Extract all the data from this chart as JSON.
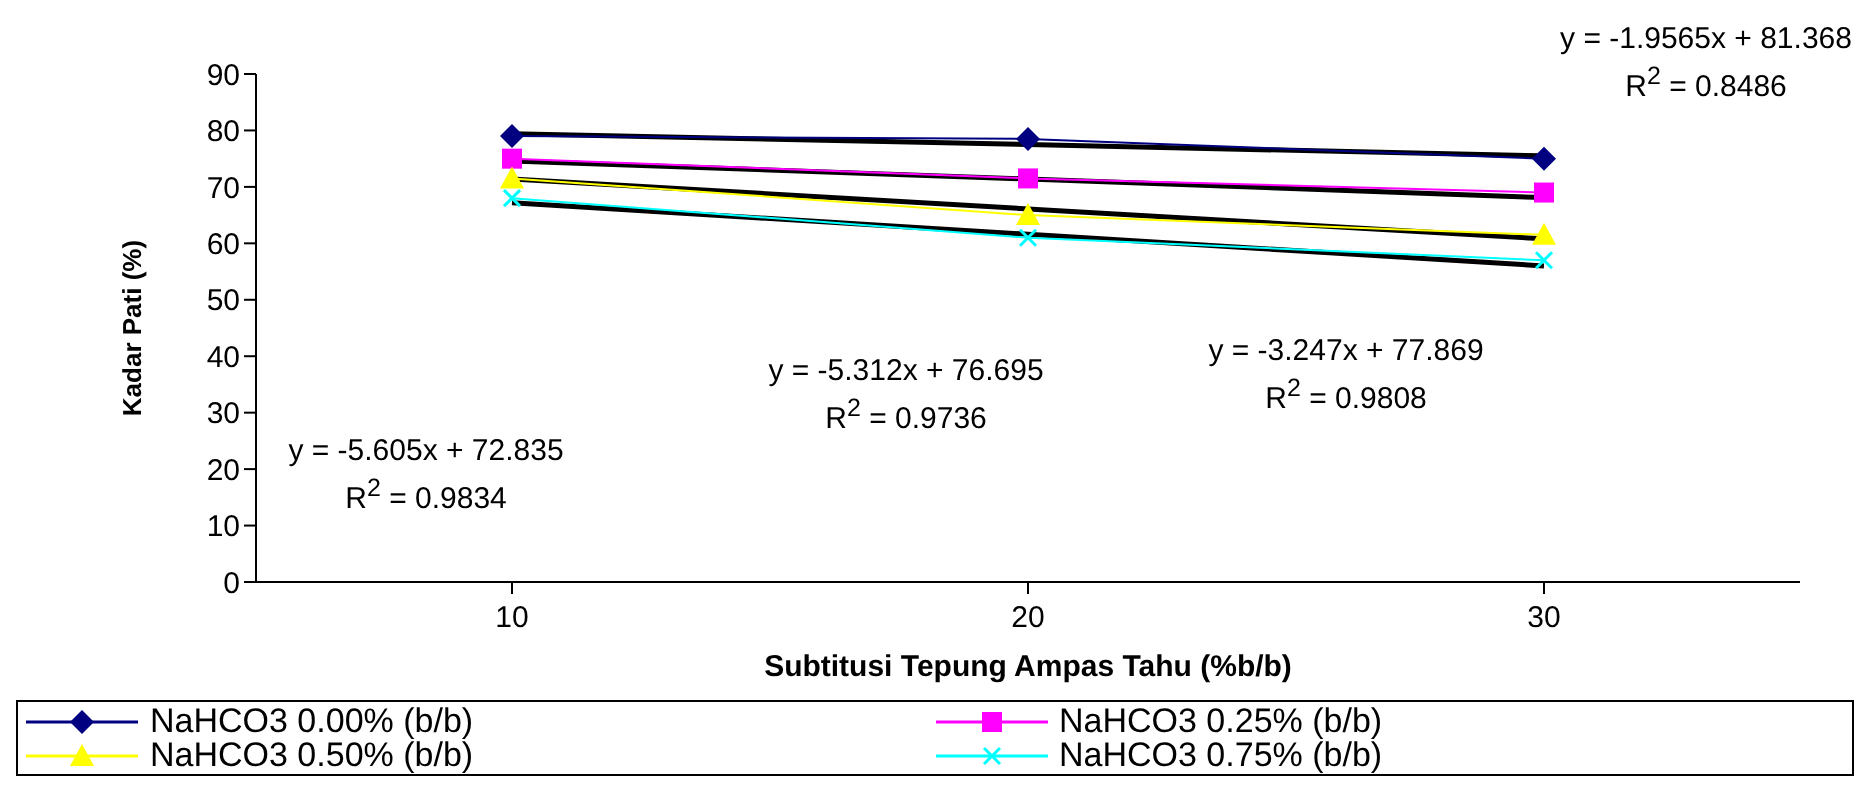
{
  "chart_data": {
    "type": "line",
    "xlabel": "Subtitusi Tepung Ampas Tahu (%b/b)",
    "ylabel": "Kadar Pati (%)",
    "categories": [
      "10",
      "20",
      "30"
    ],
    "ylim": [
      0,
      90
    ],
    "yticks": [
      0,
      10,
      20,
      30,
      40,
      50,
      60,
      70,
      80,
      90
    ],
    "grid": false,
    "legend": "bottom",
    "line_style": "solid",
    "series": [
      {
        "name": "NaHCO3 0.00% (b/b)",
        "color": "#000080",
        "marker": "diamond",
        "values": [
          79,
          78.5,
          75
        ]
      },
      {
        "name": "NaHCO3 0.25% (b/b)",
        "color": "#ff00ff",
        "marker": "square",
        "values": [
          75,
          71.5,
          69
        ]
      },
      {
        "name": "NaHCO3 0.50% (b/b)",
        "color": "#ffff00",
        "marker": "triangle",
        "values": [
          71.5,
          65,
          61.5
        ]
      },
      {
        "name": "NaHCO3 0.75% (b/b)",
        "color": "#00ffff",
        "marker": "cross",
        "values": [
          68,
          61,
          57
        ]
      },
      {
        "type": "line",
        "color": "#000000",
        "marker": "none",
        "x": [
          "10",
          "20",
          "30"
        ],
        "values": [
          79.4,
          77.5,
          75.5
        ]
      },
      {
        "type": "line",
        "color": "#000000",
        "marker": "none",
        "x": [
          "10",
          "20",
          "30"
        ],
        "values": [
          74.6,
          71.4,
          68.1
        ]
      },
      {
        "type": "line",
        "color": "#000000",
        "marker": "none",
        "x": [
          "10",
          "20",
          "30"
        ],
        "values": [
          71.4,
          66.1,
          60.8
        ]
      },
      {
        "type": "line",
        "color": "#000000",
        "marker": "none",
        "x": [
          "10",
          "20",
          "30"
        ],
        "values": [
          67.2,
          61.6,
          56.0
        ]
      }
    ],
    "annotations": [
      "y = -1.9565x + 81.368\nR$^{2}$ = 0.8486",
      "y = -3.247x + 77.869\nR$^{2}$ = 0.9808",
      "y = -5.312x + 76.695\nR$^{2}$ = 0.9736",
      "y = -5.605x + 72.835\nR$^{2}$ = 0.9834"
    ]
  }
}
